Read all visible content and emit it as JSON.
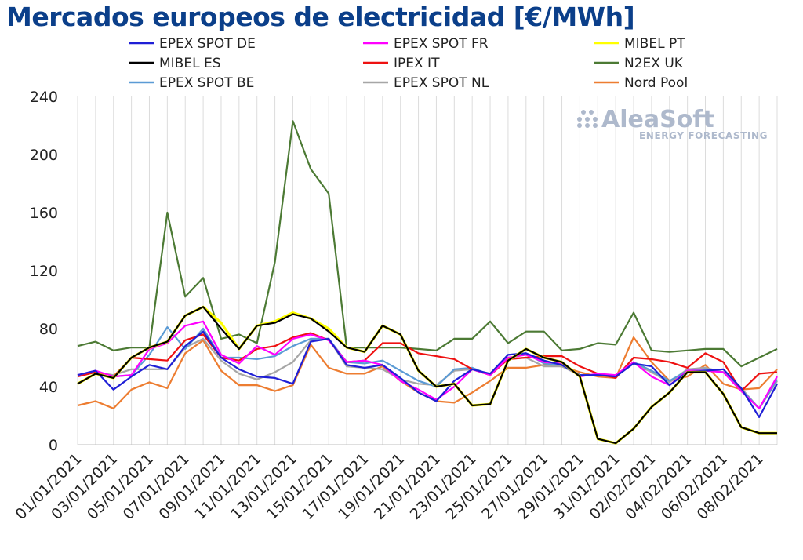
{
  "chart_data": {
    "type": "line",
    "title": "Mercados europeos de electricidad [€/MWh]",
    "xlabel": "",
    "ylabel": "",
    "ylim": [
      0,
      240
    ],
    "yticks": [
      0,
      40,
      80,
      120,
      160,
      200,
      240
    ],
    "grid": "vertical",
    "legend": "top",
    "x": [
      "01/01/2021",
      "02/01/2021",
      "03/01/2021",
      "04/01/2021",
      "05/01/2021",
      "06/01/2021",
      "07/01/2021",
      "08/01/2021",
      "09/01/2021",
      "10/01/2021",
      "11/01/2021",
      "12/01/2021",
      "13/01/2021",
      "14/01/2021",
      "15/01/2021",
      "16/01/2021",
      "17/01/2021",
      "18/01/2021",
      "19/01/2021",
      "20/01/2021",
      "21/01/2021",
      "22/01/2021",
      "23/01/2021",
      "24/01/2021",
      "25/01/2021",
      "26/01/2021",
      "27/01/2021",
      "28/01/2021",
      "29/01/2021",
      "30/01/2021",
      "31/01/2021",
      "01/02/2021",
      "02/02/2021",
      "03/02/2021",
      "04/02/2021",
      "05/02/2021",
      "06/02/2021",
      "07/02/2021",
      "08/02/2021",
      "09/02/2021"
    ],
    "x_tick_labels": [
      "01/01/2021",
      "03/01/2021",
      "05/01/2021",
      "07/01/2021",
      "09/01/2021",
      "11/01/2021",
      "13/01/2021",
      "15/01/2021",
      "17/01/2021",
      "19/01/2021",
      "21/01/2021",
      "23/01/2021",
      "25/01/2021",
      "27/01/2021",
      "29/01/2021",
      "31/01/2021",
      "02/02/2021",
      "04/02/2021",
      "06/02/2021",
      "08/02/2021"
    ],
    "series": [
      {
        "name": "EPEX SPOT DE",
        "color": "#1f1fd6",
        "values": [
          48,
          51,
          38,
          47,
          55,
          52,
          68,
          78,
          60,
          52,
          47,
          46,
          42,
          71,
          73,
          55,
          53,
          55,
          46,
          36,
          30,
          44,
          52,
          49,
          62,
          63,
          58,
          55,
          48,
          48,
          47,
          56,
          54,
          41,
          50,
          51,
          52,
          39,
          19,
          42
        ]
      },
      {
        "name": "EPEX SPOT FR",
        "color": "#ff00ff",
        "values": [
          48,
          51,
          47,
          48,
          66,
          70,
          82,
          85,
          62,
          56,
          68,
          62,
          73,
          76,
          72,
          57,
          58,
          55,
          44,
          38,
          31,
          40,
          52,
          48,
          60,
          62,
          57,
          56,
          47,
          49,
          48,
          57,
          47,
          41,
          51,
          51,
          50,
          37,
          25,
          47
        ]
      },
      {
        "name": "MIBEL PT",
        "color": "#ffff00",
        "values": [
          42,
          49,
          46,
          60,
          67,
          71,
          89,
          95,
          84,
          66,
          82,
          85,
          91,
          87,
          80,
          67,
          64,
          82,
          76,
          51,
          40,
          42,
          27,
          28,
          58,
          66,
          60,
          57,
          47,
          4,
          1,
          11,
          26,
          36,
          50,
          50,
          35,
          12,
          8,
          8
        ]
      },
      {
        "name": "MIBEL ES",
        "color": "#000000",
        "values": [
          42,
          49,
          46,
          60,
          67,
          71,
          89,
          95,
          80,
          66,
          82,
          84,
          90,
          87,
          78,
          67,
          64,
          82,
          76,
          51,
          40,
          42,
          27,
          28,
          58,
          66,
          60,
          57,
          47,
          4,
          1,
          11,
          26,
          36,
          50,
          50,
          35,
          12,
          8,
          8
        ]
      },
      {
        "name": "IPEX IT",
        "color": "#ee1111",
        "values": [
          47,
          50,
          47,
          60,
          59,
          58,
          72,
          76,
          60,
          58,
          66,
          68,
          74,
          77,
          72,
          57,
          58,
          70,
          70,
          63,
          61,
          59,
          52,
          48,
          59,
          60,
          61,
          61,
          54,
          49,
          46,
          60,
          59,
          57,
          53,
          63,
          57,
          37,
          49,
          50
        ]
      },
      {
        "name": "N2EX UK",
        "color": "#4c7a34",
        "values": [
          68,
          71,
          65,
          67,
          67,
          160,
          102,
          115,
          73,
          76,
          70,
          126,
          223,
          190,
          173,
          67,
          67,
          67,
          67,
          66,
          65,
          73,
          73,
          85,
          70,
          78,
          78,
          65,
          66,
          70,
          69,
          91,
          65,
          64,
          65,
          66,
          66,
          54,
          60,
          66
        ]
      },
      {
        "name": "EPEX SPOT BE",
        "color": "#5b9bd5",
        "values": [
          48,
          50,
          47,
          48,
          62,
          81,
          66,
          80,
          60,
          60,
          59,
          61,
          68,
          73,
          73,
          57,
          56,
          58,
          51,
          44,
          40,
          52,
          53,
          48,
          62,
          63,
          56,
          55,
          48,
          48,
          47,
          57,
          51,
          44,
          51,
          52,
          50,
          38,
          25,
          45
        ]
      },
      {
        "name": "EPEX SPOT NL",
        "color": "#a6a6a6",
        "values": [
          48,
          50,
          48,
          52,
          52,
          52,
          67,
          73,
          58,
          49,
          45,
          50,
          57,
          72,
          73,
          54,
          53,
          52,
          45,
          42,
          41,
          51,
          52,
          48,
          59,
          60,
          54,
          54,
          48,
          48,
          47,
          56,
          50,
          43,
          52,
          53,
          50,
          39,
          25,
          44
        ]
      },
      {
        "name": "Nord Pool",
        "color": "#ed7d31",
        "values": [
          27,
          30,
          25,
          38,
          43,
          39,
          63,
          72,
          51,
          41,
          41,
          37,
          41,
          69,
          53,
          49,
          49,
          54,
          44,
          36,
          30,
          29,
          36,
          44,
          53,
          53,
          55,
          54,
          50,
          47,
          46,
          74,
          57,
          44,
          47,
          55,
          42,
          38,
          39,
          52
        ]
      }
    ]
  },
  "logo": {
    "main": "AleaSoft",
    "sub": "ENERGY FORECASTING"
  }
}
